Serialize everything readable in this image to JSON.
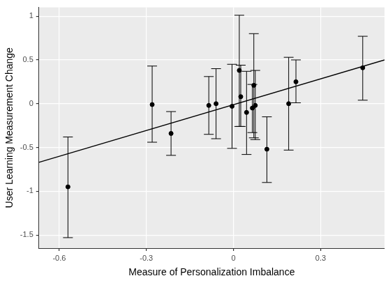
{
  "chart_data": {
    "type": "scatter",
    "x_label": "Measure of Personalization Imbalance",
    "y_label": "User Learning Measurement Change",
    "x": [
      -0.57,
      -0.28,
      -0.215,
      -0.085,
      -0.06,
      -0.005,
      0.02,
      0.025,
      0.045,
      0.065,
      0.07,
      0.075,
      0.115,
      0.19,
      0.215,
      0.445
    ],
    "values": [
      -0.95,
      -0.01,
      -0.34,
      -0.02,
      0.0,
      -0.03,
      0.38,
      0.08,
      -0.1,
      -0.05,
      0.21,
      -0.02,
      -0.52,
      0.0,
      0.25,
      0.41
    ],
    "error_low": [
      -1.53,
      -0.44,
      -0.59,
      -0.35,
      -0.4,
      -0.51,
      -0.26,
      -0.26,
      -0.58,
      -0.33,
      -0.39,
      -0.41,
      -0.9,
      -0.53,
      0.01,
      0.04
    ],
    "error_high": [
      -0.38,
      0.43,
      -0.09,
      0.31,
      0.4,
      0.45,
      1.01,
      0.44,
      0.37,
      0.22,
      0.8,
      0.38,
      -0.15,
      0.53,
      0.5,
      0.77
    ],
    "fit_line": {
      "x": [
        -0.67,
        0.52
      ],
      "y": [
        -0.67,
        0.5
      ]
    },
    "color": "#000000",
    "xlim": [
      -0.67,
      0.52
    ],
    "xticks": [
      -0.6,
      -0.3,
      0,
      0.3
    ],
    "ylim": [
      -1.65,
      1.1
    ],
    "yticks": [
      -1.5,
      -1,
      -0.5,
      0,
      0.5,
      1
    ],
    "grid": true
  }
}
